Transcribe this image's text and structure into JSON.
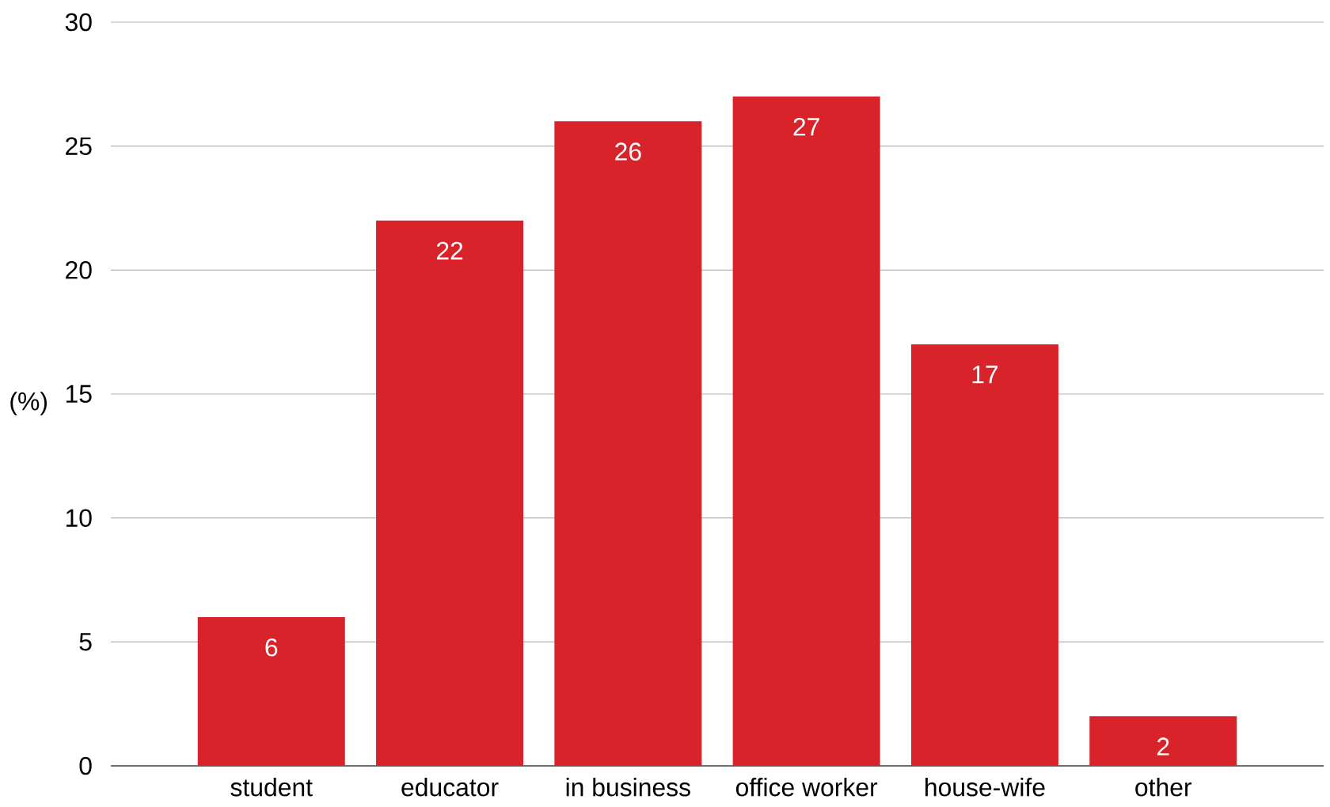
{
  "chart_data": {
    "type": "bar",
    "ylabel": "(%)",
    "categories": [
      "student",
      "educator",
      "in business",
      "office worker",
      "house-wife",
      "other"
    ],
    "values": [
      6,
      22,
      26,
      27,
      17,
      2
    ],
    "color": "#d9232a",
    "ylim": [
      0,
      30
    ],
    "yticks": [
      0,
      5,
      10,
      15,
      20,
      25,
      30
    ],
    "grid": "y",
    "data_labels": true
  }
}
